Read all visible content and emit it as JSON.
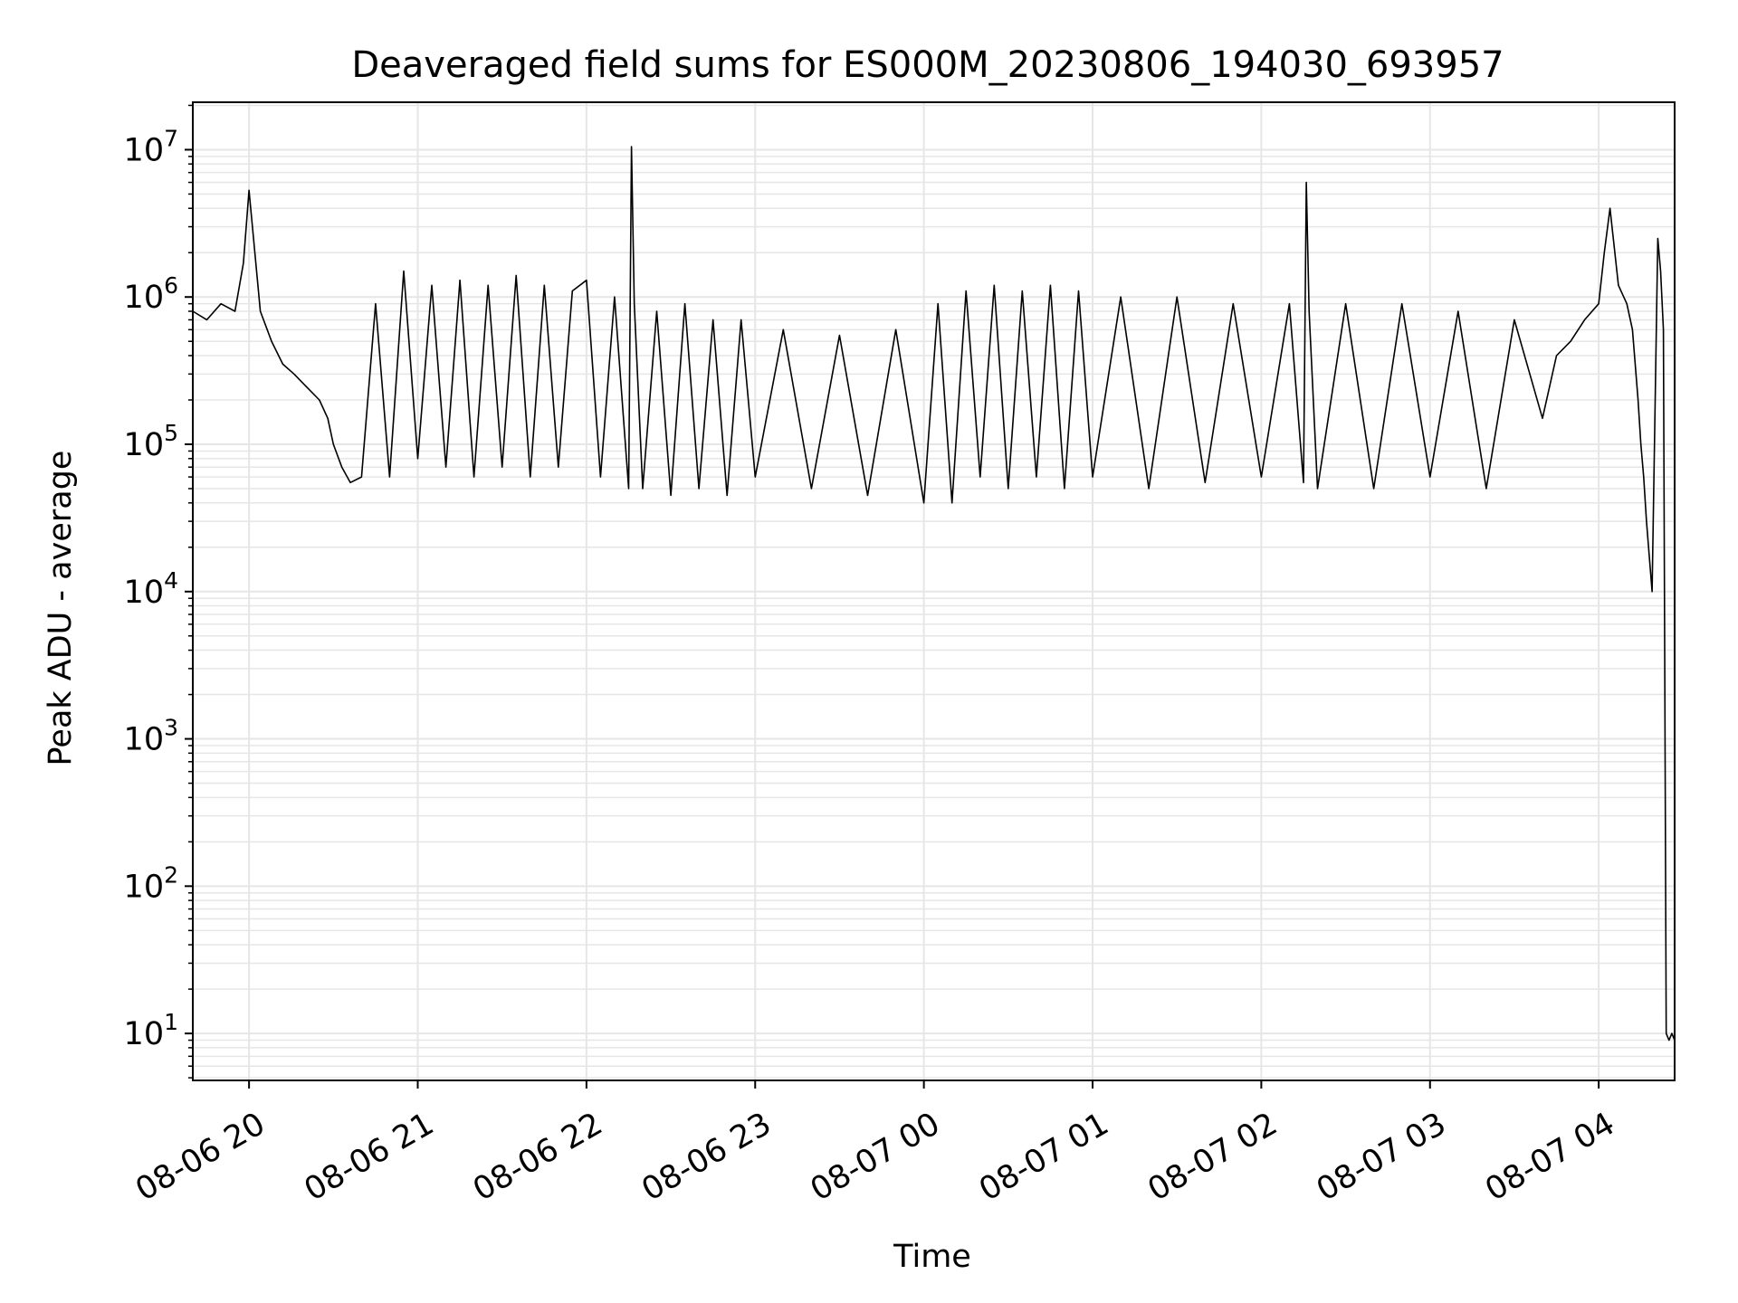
{
  "chart_data": {
    "type": "line",
    "title": "Deaveraged field sums for ES000M_20230806_194030_693957",
    "xlabel": "Time",
    "ylabel": "Peak ADU - average",
    "yscale": "log",
    "grid": true,
    "legend": "none",
    "colors": {
      "line": "#000000",
      "grid": "#e6e6e6",
      "axes": "#000000",
      "background": "#ffffff"
    },
    "x_range": [
      "2023-08-06 19:40",
      "2023-08-07 04:27"
    ],
    "ylim": [
      4.8,
      21000000
    ],
    "x_ticks": [
      {
        "t": "2023-08-06 20:00",
        "label": "08-06 20"
      },
      {
        "t": "2023-08-06 21:00",
        "label": "08-06 21"
      },
      {
        "t": "2023-08-06 22:00",
        "label": "08-06 22"
      },
      {
        "t": "2023-08-06 23:00",
        "label": "08-06 23"
      },
      {
        "t": "2023-08-07 00:00",
        "label": "08-07 00"
      },
      {
        "t": "2023-08-07 01:00",
        "label": "08-07 01"
      },
      {
        "t": "2023-08-07 02:00",
        "label": "08-07 02"
      },
      {
        "t": "2023-08-07 03:00",
        "label": "08-07 03"
      },
      {
        "t": "2023-08-07 04:00",
        "label": "08-07 04"
      }
    ],
    "y_ticks": [
      {
        "value": 10,
        "base": "10",
        "exp": "1"
      },
      {
        "value": 100,
        "base": "10",
        "exp": "2"
      },
      {
        "value": 1000,
        "base": "10",
        "exp": "3"
      },
      {
        "value": 10000,
        "base": "10",
        "exp": "4"
      },
      {
        "value": 100000,
        "base": "10",
        "exp": "5"
      },
      {
        "value": 1000000,
        "base": "10",
        "exp": "6"
      },
      {
        "value": 10000000,
        "base": "10",
        "exp": "7"
      }
    ],
    "series": [
      {
        "x": [
          "2023-08-06 19:40",
          "2023-08-06 19:45",
          "2023-08-06 19:50",
          "2023-08-06 19:55",
          "2023-08-06 19:58",
          "2023-08-06 20:00",
          "2023-08-06 20:04",
          "2023-08-06 20:08",
          "2023-08-06 20:12",
          "2023-08-06 20:16",
          "2023-08-06 20:20",
          "2023-08-06 20:25",
          "2023-08-06 20:28",
          "2023-08-06 20:30",
          "2023-08-06 20:33",
          "2023-08-06 20:36",
          "2023-08-06 20:40",
          "2023-08-06 20:45",
          "2023-08-06 20:50",
          "2023-08-06 20:55",
          "2023-08-06 21:00",
          "2023-08-06 21:05",
          "2023-08-06 21:10",
          "2023-08-06 21:15",
          "2023-08-06 21:20",
          "2023-08-06 21:25",
          "2023-08-06 21:30",
          "2023-08-06 21:35",
          "2023-08-06 21:40",
          "2023-08-06 21:45",
          "2023-08-06 21:50",
          "2023-08-06 21:55",
          "2023-08-06 22:00",
          "2023-08-06 22:05",
          "2023-08-06 22:10",
          "2023-08-06 22:15",
          "2023-08-06 22:16",
          "2023-08-06 22:17",
          "2023-08-06 22:20",
          "2023-08-06 22:25",
          "2023-08-06 22:30",
          "2023-08-06 22:35",
          "2023-08-06 22:40",
          "2023-08-06 22:45",
          "2023-08-06 22:50",
          "2023-08-06 22:55",
          "2023-08-06 23:00",
          "2023-08-06 23:10",
          "2023-08-06 23:20",
          "2023-08-06 23:30",
          "2023-08-06 23:40",
          "2023-08-06 23:50",
          "2023-08-07 00:00",
          "2023-08-07 00:05",
          "2023-08-07 00:10",
          "2023-08-07 00:15",
          "2023-08-07 00:20",
          "2023-08-07 00:25",
          "2023-08-07 00:30",
          "2023-08-07 00:35",
          "2023-08-07 00:40",
          "2023-08-07 00:45",
          "2023-08-07 00:50",
          "2023-08-07 00:55",
          "2023-08-07 01:00",
          "2023-08-07 01:10",
          "2023-08-07 01:20",
          "2023-08-07 01:30",
          "2023-08-07 01:40",
          "2023-08-07 01:50",
          "2023-08-07 02:00",
          "2023-08-07 02:10",
          "2023-08-07 02:15",
          "2023-08-07 02:16",
          "2023-08-07 02:17",
          "2023-08-07 02:20",
          "2023-08-07 02:30",
          "2023-08-07 02:40",
          "2023-08-07 02:50",
          "2023-08-07 03:00",
          "2023-08-07 03:10",
          "2023-08-07 03:20",
          "2023-08-07 03:30",
          "2023-08-07 03:40",
          "2023-08-07 03:45",
          "2023-08-07 03:50",
          "2023-08-07 03:55",
          "2023-08-07 04:00",
          "2023-08-07 04:02",
          "2023-08-07 04:04",
          "2023-08-07 04:07",
          "2023-08-07 04:10",
          "2023-08-07 04:12",
          "2023-08-07 04:14",
          "2023-08-07 04:15",
          "2023-08-07 04:16",
          "2023-08-07 04:17",
          "2023-08-07 04:19",
          "2023-08-07 04:21",
          "2023-08-07 04:22",
          "2023-08-07 04:23",
          "2023-08-07 04:24",
          "2023-08-07 04:25",
          "2023-08-07 04:26",
          "2023-08-07 04:27"
        ],
        "y": [
          800000,
          700000,
          900000,
          800000,
          1700000,
          5300000,
          800000,
          500000,
          350000,
          300000,
          250000,
          200000,
          150000,
          100000,
          70000,
          55000,
          60000,
          900000,
          60000,
          1500000,
          80000,
          1200000,
          70000,
          1300000,
          60000,
          1200000,
          70000,
          1400000,
          60000,
          1200000,
          70000,
          1100000,
          1300000,
          60000,
          1000000,
          50000,
          10500000,
          900000,
          50000,
          800000,
          45000,
          900000,
          50000,
          700000,
          45000,
          700000,
          60000,
          600000,
          50000,
          550000,
          45000,
          600000,
          40000,
          900000,
          40000,
          1100000,
          60000,
          1200000,
          50000,
          1100000,
          60000,
          1200000,
          50000,
          1100000,
          60000,
          1000000,
          50000,
          1000000,
          55000,
          900000,
          60000,
          900000,
          55000,
          6000000,
          800000,
          50000,
          900000,
          50000,
          900000,
          60000,
          800000,
          50000,
          700000,
          150000,
          400000,
          500000,
          700000,
          900000,
          2000000,
          4000000,
          1200000,
          900000,
          600000,
          200000,
          100000,
          60000,
          30000,
          10000,
          2500000,
          1500000,
          600000,
          10,
          9,
          10,
          9
        ]
      }
    ]
  }
}
